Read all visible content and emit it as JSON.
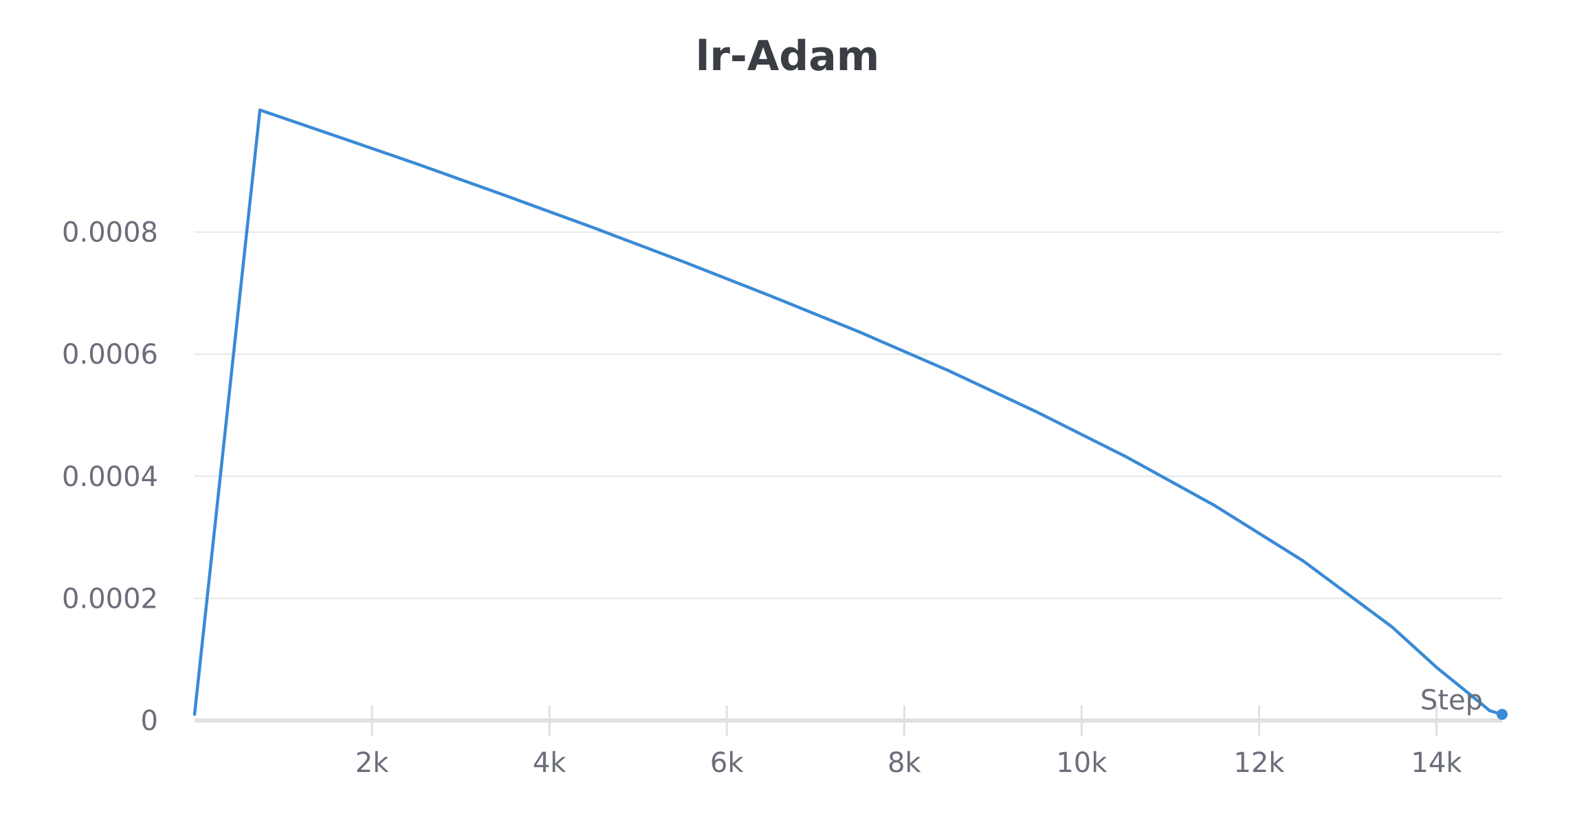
{
  "chart_data": {
    "type": "line",
    "title": "lr-Adam",
    "xlabel": "Step",
    "ylabel": "",
    "xlim": [
      0,
      14740
    ],
    "ylim": [
      0,
      0.001
    ],
    "x_ticks": [
      2000,
      4000,
      6000,
      8000,
      10000,
      12000,
      14000
    ],
    "x_tick_labels": [
      "2k",
      "4k",
      "6k",
      "8k",
      "10k",
      "12k",
      "14k"
    ],
    "y_ticks": [
      0,
      0.0002,
      0.0004,
      0.0006,
      0.0008
    ],
    "y_tick_labels": [
      "0",
      "0.0002",
      "0.0004",
      "0.0006",
      "0.0008"
    ],
    "grid": true,
    "legend": "none",
    "colors": {
      "line": "#3a8ad6",
      "grid": "#e6e6e6",
      "axis": "#e0e0e0",
      "tick_text": "#6b6e7a",
      "title_text": "#3b3d45"
    },
    "series": [
      {
        "x": [
          0,
          737,
          1500,
          2500,
          3500,
          4500,
          5500,
          6500,
          7500,
          8500,
          9500,
          10500,
          11500,
          12500,
          13500,
          14000,
          14400,
          14600,
          14740
        ],
        "y": [
          1e-05,
          0.001,
          0.000962,
          0.000912,
          0.00086,
          0.000807,
          0.000752,
          0.000695,
          0.000636,
          0.000573,
          0.000505,
          0.000432,
          0.000352,
          0.000261,
          0.000153,
          8.7e-05,
          4e-05,
          1.6e-05,
          1e-05
        ]
      }
    ]
  }
}
